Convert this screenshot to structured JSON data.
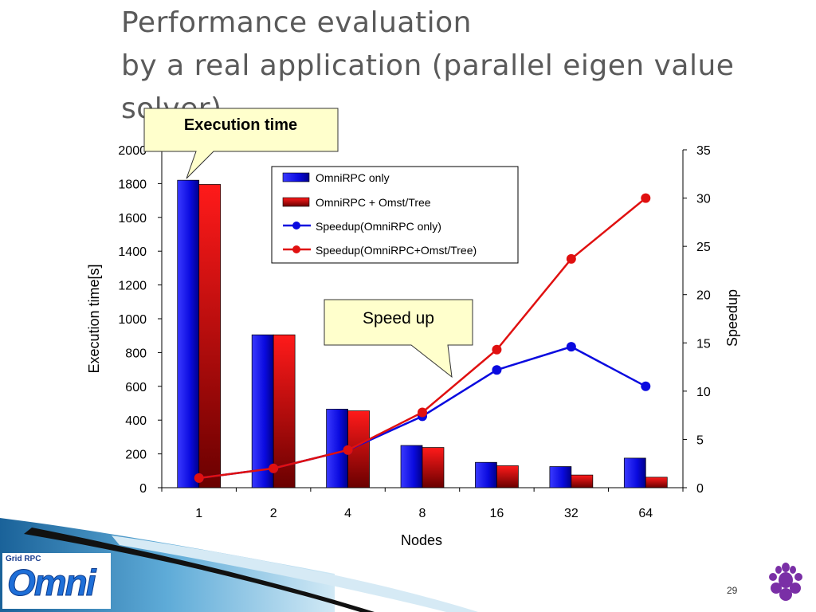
{
  "title": {
    "line1": "Performance evaluation",
    "line2": "by a real application (parallel eigen value",
    "line3": "solver)"
  },
  "callouts": {
    "execution_time": "Execution time",
    "speed_up": "Speed up"
  },
  "slide_number": "29",
  "logo": {
    "tag": "Grid RPC",
    "word": "Omni"
  },
  "colors": {
    "blue": "#0a0adf",
    "red": "#e01010",
    "callout_fill": "#ffffcc",
    "accent_wave": "#1b6ea8"
  },
  "chart_data": {
    "type": "bar",
    "title": "",
    "categories": [
      "1",
      "2",
      "4",
      "8",
      "16",
      "32",
      "64"
    ],
    "xlabel": "Nodes",
    "ylabel": "Execution time[s]",
    "y2label": "Speedup",
    "ylim": [
      0,
      2000
    ],
    "y2lim": [
      0,
      35
    ],
    "yticks": [
      "0",
      "200",
      "400",
      "600",
      "800",
      "1000",
      "1200",
      "1400",
      "1600",
      "1800",
      "2000"
    ],
    "y2ticks": [
      "0",
      "5",
      "10",
      "15",
      "20",
      "25",
      "30",
      "35"
    ],
    "legend_position": "top-right",
    "grid": false,
    "series": [
      {
        "name": "OmniRPC only",
        "type": "bar",
        "axis": "left",
        "color": "#0a0adf",
        "values": [
          1820,
          905,
          465,
          250,
          150,
          125,
          175
        ]
      },
      {
        "name": "OmniRPC + Omst/Tree",
        "type": "bar",
        "axis": "left",
        "color": "#e01010",
        "values": [
          1795,
          905,
          455,
          238,
          130,
          75,
          62
        ]
      },
      {
        "name": "Speedup(OmniRPC only)",
        "type": "line",
        "axis": "right",
        "color": "#0a0adf",
        "values": [
          1.0,
          2.0,
          3.9,
          7.4,
          12.2,
          14.6,
          10.5
        ]
      },
      {
        "name": "Speedup(OmniRPC+Omst/Tree)",
        "type": "line",
        "axis": "right",
        "color": "#e01010",
        "values": [
          1.0,
          2.0,
          3.9,
          7.8,
          14.3,
          23.7,
          30.0
        ]
      }
    ]
  }
}
